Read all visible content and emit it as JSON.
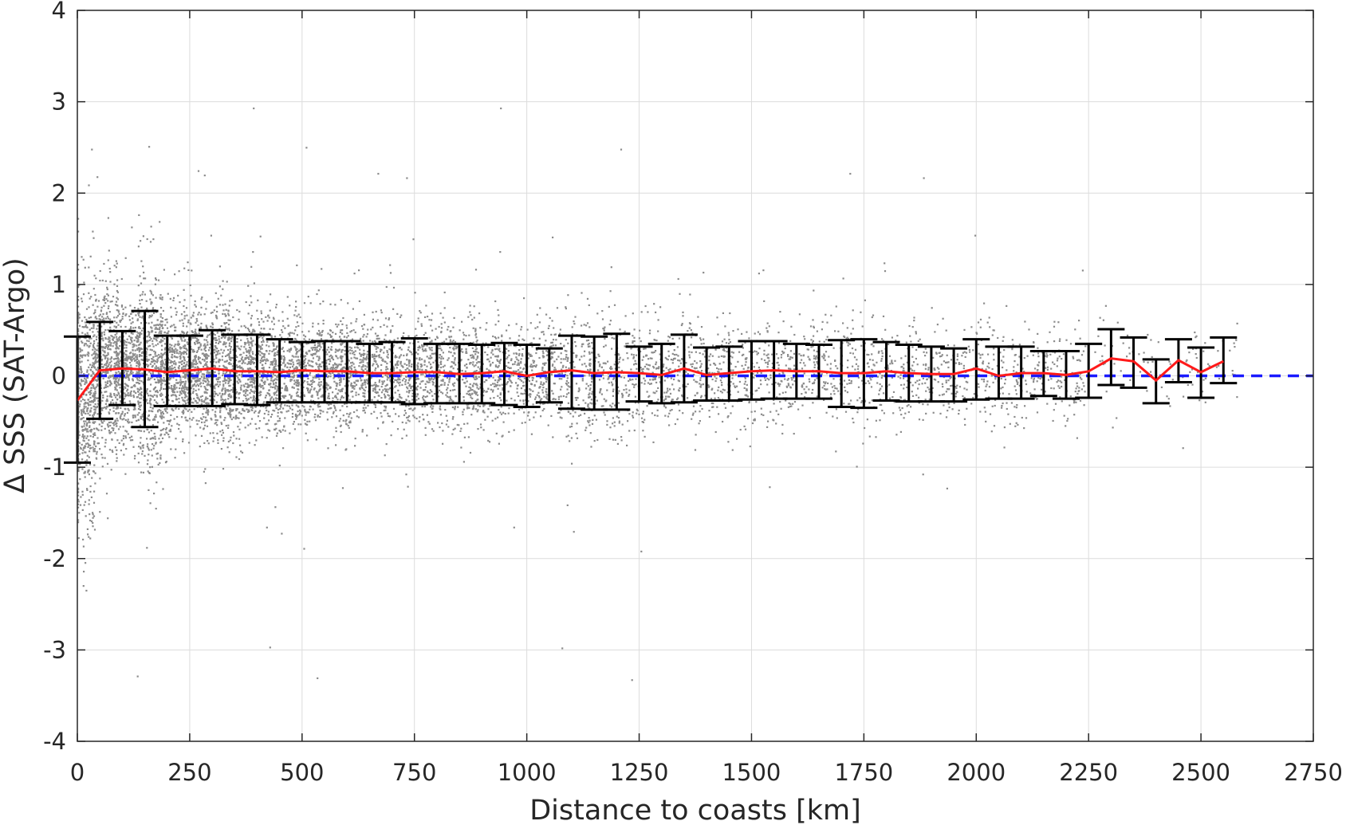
{
  "chart_data": {
    "type": "scatter",
    "xlabel": "Distance to coasts [km]",
    "ylabel": "Δ SSS (SAT-Argo)",
    "xlim": [
      0,
      2750
    ],
    "ylim": [
      -4,
      4
    ],
    "xticks": [
      0,
      250,
      500,
      750,
      1000,
      1250,
      1500,
      1750,
      2000,
      2250,
      2500,
      2750
    ],
    "yticks": [
      -4,
      -3,
      -2,
      -1,
      0,
      1,
      2,
      3,
      4
    ],
    "grid": true,
    "colors": {
      "scatter": "#8c8c8c",
      "mean": "#ff1a1a",
      "zero": "#1a1aff",
      "errorbar": "#000000",
      "grid": "#dcdcdc",
      "axis": "#262626"
    },
    "series": [
      {
        "kind": "binned_mean",
        "x": [
          0,
          50,
          100,
          150,
          200,
          250,
          300,
          350,
          400,
          450,
          500,
          550,
          600,
          650,
          700,
          750,
          800,
          850,
          900,
          950,
          1000,
          1050,
          1100,
          1150,
          1200,
          1250,
          1300,
          1350,
          1400,
          1450,
          1500,
          1550,
          1600,
          1650,
          1700,
          1750,
          1800,
          1850,
          1900,
          1950,
          2000,
          2050,
          2100,
          2150,
          2200,
          2250,
          2300,
          2350,
          2400,
          2450,
          2500,
          2550
        ],
        "y": [
          -0.27,
          0.06,
          0.08,
          0.07,
          0.04,
          0.06,
          0.08,
          0.05,
          0.05,
          0.04,
          0.06,
          0.05,
          0.05,
          0.03,
          0.03,
          0.04,
          0.04,
          0.02,
          0.03,
          0.05,
          0.0,
          0.04,
          0.06,
          0.03,
          0.04,
          0.03,
          0.01,
          0.08,
          0.01,
          0.03,
          0.05,
          0.06,
          0.05,
          0.05,
          0.03,
          0.03,
          0.05,
          0.03,
          0.02,
          0.02,
          0.08,
          0.0,
          0.03,
          0.03,
          0.01,
          0.05,
          0.19,
          0.16,
          -0.05,
          0.17,
          0.04,
          0.16
        ],
        "lower": [
          -0.95,
          -0.47,
          -0.32,
          -0.56,
          -0.33,
          -0.33,
          -0.33,
          -0.31,
          -0.32,
          -0.29,
          -0.29,
          -0.29,
          -0.29,
          -0.29,
          -0.29,
          -0.31,
          -0.3,
          -0.3,
          -0.3,
          -0.32,
          -0.34,
          -0.29,
          -0.36,
          -0.37,
          -0.37,
          -0.28,
          -0.3,
          -0.29,
          -0.27,
          -0.27,
          -0.26,
          -0.25,
          -0.25,
          -0.25,
          -0.34,
          -0.35,
          -0.27,
          -0.28,
          -0.28,
          -0.28,
          -0.26,
          -0.25,
          -0.25,
          -0.22,
          -0.25,
          -0.24,
          -0.1,
          -0.13,
          -0.3,
          -0.07,
          -0.24,
          -0.08
        ],
        "upper": [
          0.43,
          0.59,
          0.49,
          0.71,
          0.44,
          0.44,
          0.5,
          0.45,
          0.45,
          0.4,
          0.37,
          0.38,
          0.38,
          0.35,
          0.37,
          0.41,
          0.35,
          0.35,
          0.34,
          0.36,
          0.34,
          0.3,
          0.44,
          0.43,
          0.46,
          0.32,
          0.35,
          0.45,
          0.31,
          0.32,
          0.38,
          0.38,
          0.35,
          0.34,
          0.39,
          0.4,
          0.37,
          0.34,
          0.32,
          0.3,
          0.4,
          0.32,
          0.32,
          0.27,
          0.27,
          0.35,
          0.51,
          0.42,
          0.18,
          0.4,
          0.31,
          0.42
        ]
      },
      {
        "kind": "reference_line",
        "y": 0
      }
    ]
  }
}
